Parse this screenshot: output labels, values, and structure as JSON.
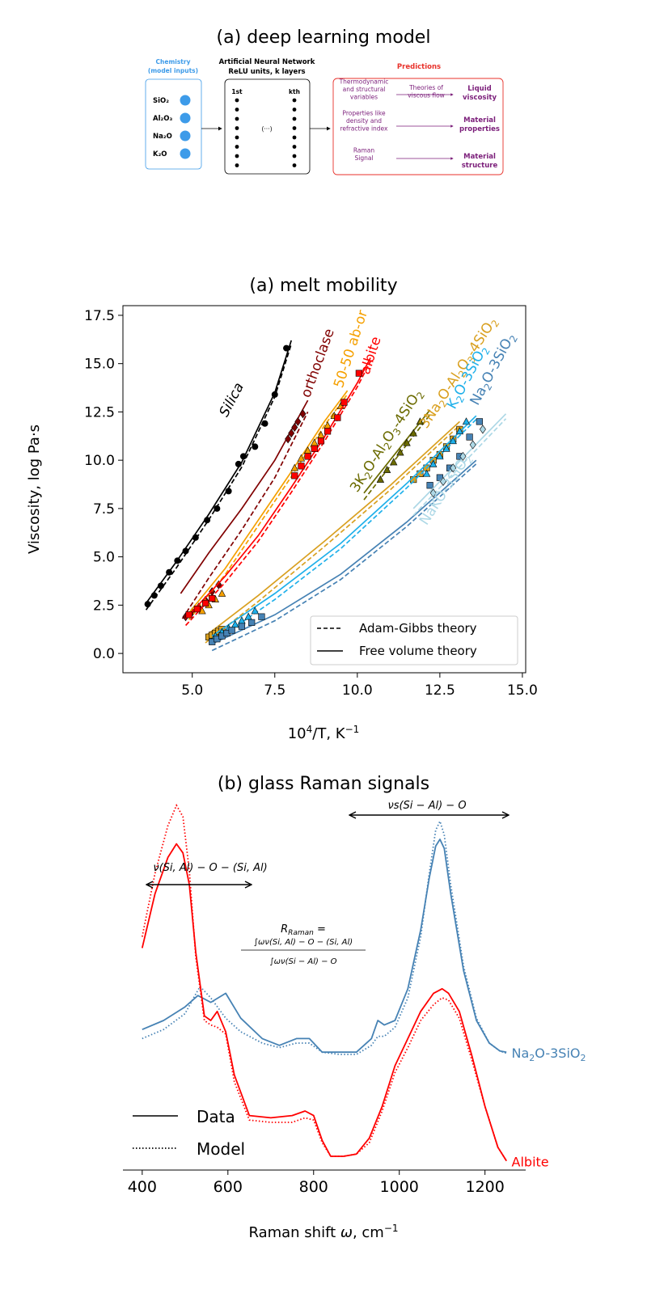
{
  "diagram": {
    "title": "(a) deep learning model",
    "inputs_title_1": "Chemistry",
    "inputs_title_2": "(model inputs)",
    "inputs": [
      "SiO₂",
      "Al₂O₃",
      "Na₂O",
      "K₂O"
    ],
    "ann_title_1": "Artificial Neural Network",
    "ann_title_2": "ReLU units, k layers",
    "ann_first": "1st",
    "ann_kth": "kth",
    "ann_dots": "(···)",
    "pred_title": "Predictions",
    "pred_rows": [
      {
        "left": [
          "Thermodynamic",
          "and structural",
          "variables"
        ],
        "middle": [
          "Theories of",
          "viscous flow"
        ],
        "right": [
          "Liquid",
          "viscosity"
        ]
      },
      {
        "left": [
          "Properties like",
          "density and",
          "refractive index"
        ],
        "middle": [],
        "right": [
          "Material",
          "properties"
        ]
      },
      {
        "left": [
          "Raman",
          "Signal"
        ],
        "middle": [],
        "right": [
          "Material",
          "structure"
        ]
      }
    ],
    "colors": {
      "inputs": "#3d9be9",
      "pred": "#e8322b",
      "purple": "#7b1e7a"
    }
  },
  "chart_data": [
    {
      "type": "line",
      "title": "(a) melt mobility",
      "xlabel_base": "10",
      "xlabel_sup": "4",
      "xlabel_rest": "/T, K",
      "xlabel_sup2": "−1",
      "ylabel": "Viscosity, log Pa·s",
      "xlim": [
        2.9,
        15.1
      ],
      "ylim": [
        -1.0,
        18.0
      ],
      "xticks": [
        "5.0",
        "7.5",
        "10.0",
        "12.5",
        "15.0"
      ],
      "yticks": [
        "0.0",
        "2.5",
        "5.0",
        "7.5",
        "10.0",
        "12.5",
        "15.0",
        "17.5"
      ],
      "legend": [
        {
          "label": "Adam-Gibbs theory",
          "style": "dashed"
        },
        {
          "label": "Free volume theory",
          "style": "solid"
        }
      ],
      "legend_position": "lower-right",
      "series": [
        {
          "name": "Silica",
          "color": "#000000",
          "marker": "circle",
          "x": [
            3.65,
            3.85,
            4.05,
            4.3,
            4.55,
            4.8,
            5.1,
            5.45,
            5.75,
            6.1,
            6.4,
            6.55,
            6.9,
            7.2,
            7.5,
            7.85
          ],
          "y": [
            2.55,
            3.0,
            3.5,
            4.2,
            4.8,
            5.3,
            6.0,
            6.9,
            7.5,
            8.4,
            9.8,
            10.2,
            10.7,
            11.9,
            13.4,
            15.8
          ],
          "fit_x": [
            3.6,
            4.5,
            5.5,
            6.5,
            7.5,
            8.0
          ],
          "fit_y": [
            2.6,
            4.7,
            7.2,
            9.9,
            13.5,
            16.2
          ],
          "label_text": "Silica",
          "label_x": 6.05,
          "label_y": 12.2,
          "label_rot": -62
        },
        {
          "name": "orthoclase",
          "color": "#800000",
          "marker": "diamond",
          "x": [
            4.8,
            5.0,
            5.2,
            5.4,
            5.6,
            5.8,
            7.9,
            8.0,
            8.1,
            8.2,
            8.35
          ],
          "y": [
            1.9,
            2.15,
            2.4,
            2.75,
            3.2,
            3.55,
            11.1,
            11.4,
            11.7,
            12.0,
            12.4
          ],
          "fit_x": [
            4.65,
            5.5,
            6.5,
            7.5,
            8.5
          ],
          "fit_y": [
            3.1,
            5.2,
            7.5,
            10.0,
            13.1
          ],
          "fit2_x": [
            4.7,
            5.5,
            6.5,
            7.5,
            8.5
          ],
          "fit2_y": [
            1.8,
            3.9,
            6.4,
            9.1,
            12.5
          ],
          "label_text": "orthoclase",
          "label_x": 8.55,
          "label_y": 13.2,
          "label_rot": -70
        },
        {
          "name": "50-50 ab-or",
          "color": "#f5a000",
          "marker": "triangle",
          "x": [
            5.3,
            5.5,
            5.7,
            5.9,
            8.1,
            8.3,
            8.5,
            8.7,
            8.9,
            9.1,
            9.3,
            9.5
          ],
          "y": [
            2.2,
            2.5,
            2.8,
            3.1,
            9.6,
            10.1,
            10.5,
            10.9,
            11.3,
            11.8,
            12.3,
            12.8
          ],
          "fit_x": [
            4.9,
            6.0,
            7.0,
            8.0,
            9.0,
            9.7
          ],
          "fit_y": [
            2.1,
            4.4,
            6.9,
            9.4,
            12.0,
            13.6
          ],
          "label_text": "50-50 ab-or",
          "label_x": 9.55,
          "label_y": 13.7,
          "label_rot": -72
        },
        {
          "name": "albite",
          "color": "#ff0000",
          "marker": "square",
          "x": [
            4.9,
            5.15,
            5.4,
            5.6,
            8.1,
            8.3,
            8.5,
            8.7,
            8.9,
            9.1,
            9.4,
            9.6,
            10.05
          ],
          "y": [
            2.0,
            2.3,
            2.6,
            2.85,
            9.2,
            9.7,
            10.2,
            10.6,
            11.0,
            11.5,
            12.2,
            13.0,
            14.5
          ],
          "fit_x": [
            4.8,
            6.0,
            7.0,
            8.0,
            9.0,
            10.0,
            10.4
          ],
          "fit_y": [
            1.8,
            4.0,
            6.1,
            8.6,
            11.2,
            14.0,
            15.3
          ],
          "label_text": "albite",
          "label_x": 10.35,
          "label_y": 14.4,
          "label_rot": -72
        },
        {
          "name": "3K₂O-Al₂O₃-4SiO₂",
          "color": "#6b6b00",
          "marker": "triangle",
          "x": [
            10.7,
            10.9,
            11.1,
            11.3,
            11.5,
            11.7,
            11.9
          ],
          "y": [
            9.0,
            9.5,
            9.9,
            10.4,
            10.9,
            11.4,
            12.0
          ],
          "fit_x": [
            10.2,
            12.2
          ],
          "fit_y": [
            8.3,
            12.6
          ],
          "label_text_base": "3K",
          "label_x": 10.0,
          "label_y": 8.3,
          "label_rot": -57
        },
        {
          "name": "3Na₂O-Al₂O₃-4SiO₂",
          "color": "#d9a020",
          "marker": "square",
          "x": [
            5.5,
            5.6,
            5.7,
            5.8,
            5.9,
            11.7,
            11.9,
            12.1,
            12.3,
            12.5,
            12.7,
            12.9,
            13.1
          ],
          "y": [
            0.85,
            0.95,
            1.05,
            1.15,
            1.25,
            9.0,
            9.3,
            9.6,
            10.0,
            10.3,
            10.7,
            11.1,
            11.6
          ],
          "fit_x": [
            5.4,
            7.0,
            9.0,
            11.0,
            13.1
          ],
          "fit_y": [
            0.9,
            3.0,
            5.8,
            8.7,
            12.0
          ],
          "label_text_base": "3Na",
          "label_x": 12.1,
          "label_y": 11.6,
          "label_rot": -57
        },
        {
          "name": "K₂O-3SiO₂",
          "color": "#1fb0ea",
          "marker": "triangle",
          "x": [
            5.7,
            5.9,
            6.1,
            6.3,
            6.5,
            6.7,
            6.9,
            12.1,
            12.3,
            12.5,
            12.7,
            12.9,
            13.1,
            13.3
          ],
          "y": [
            0.9,
            1.1,
            1.3,
            1.5,
            1.7,
            1.9,
            2.2,
            9.3,
            9.8,
            10.2,
            10.6,
            11.0,
            11.5,
            12.0
          ],
          "fit_x": [
            5.6,
            7.5,
            9.5,
            11.5,
            13.6
          ],
          "fit_y": [
            0.9,
            3.1,
            5.7,
            8.8,
            12.3
          ],
          "label_text_base": "K",
          "label_x": 12.95,
          "label_y": 12.6,
          "label_rot": -62
        },
        {
          "name": "Na₂O-3SiO₂",
          "color": "#4682b4",
          "marker": "square",
          "x": [
            5.6,
            5.75,
            5.9,
            6.05,
            6.2,
            6.5,
            6.8,
            7.1,
            12.2,
            12.5,
            12.8,
            13.1,
            13.4,
            13.7
          ],
          "y": [
            0.6,
            0.75,
            0.9,
            1.05,
            1.2,
            1.4,
            1.6,
            1.9,
            8.7,
            9.1,
            9.6,
            10.2,
            11.2,
            12.0
          ],
          "fit_x": [
            5.6,
            7.5,
            9.5,
            11.5,
            13.6
          ],
          "fit_y": [
            0.5,
            2.0,
            4.1,
            6.8,
            10.0
          ],
          "label_text_base": "Na",
          "label_x": 13.65,
          "label_y": 12.8,
          "label_rot": -62
        },
        {
          "name": "NaKO-3SiO₂",
          "color": "#add8e6",
          "marker": "diamond",
          "x": [
            12.3,
            12.6,
            12.9,
            13.2,
            13.5,
            13.8
          ],
          "y": [
            8.3,
            8.9,
            9.6,
            10.2,
            10.8,
            11.6
          ],
          "fit_x": [
            11.7,
            14.5
          ],
          "fit_y": [
            7.5,
            12.4
          ],
          "label_text": "NaKO-3SiO",
          "label_x": 12.1,
          "label_y": 6.6,
          "label_rot": -57
        }
      ]
    },
    {
      "type": "line",
      "title": "(b) glass Raman signals",
      "xlabel": "Raman shift",
      "xlabel_unit": ", cm",
      "xlabel_sup": "−1",
      "xlim": [
        355,
        1295
      ],
      "xticks": [
        "400",
        "600",
        "800",
        "1000",
        "1200"
      ],
      "legend": [
        {
          "label": "Data",
          "style": "solid"
        },
        {
          "label": "Model",
          "style": "dotted"
        }
      ],
      "legend_position": "lower-left",
      "ann_left": "ν(Si, Al) − O − (Si, Al)",
      "ann_right": "νs(Si − Al) − O",
      "formula_lhs": "R",
      "formula_sub": "Raman",
      "formula_eq": " =",
      "formula_num": "∫ων(Si, Al) − O − (Si, Al)",
      "formula_den": "∫ων(Si − Al) − O",
      "series": [
        {
          "name": "Na₂O-3SiO₂",
          "color": "#4682b4",
          "data_x": [
            400,
            450,
            500,
            530,
            560,
            595,
            630,
            680,
            720,
            760,
            790,
            820,
            860,
            900,
            935,
            950,
            965,
            990,
            1020,
            1050,
            1070,
            1085,
            1095,
            1105,
            1120,
            1150,
            1180,
            1210,
            1235,
            1250
          ],
          "data_y": [
            0.26,
            0.3,
            0.36,
            0.41,
            0.38,
            0.42,
            0.31,
            0.22,
            0.19,
            0.22,
            0.22,
            0.16,
            0.16,
            0.16,
            0.22,
            0.3,
            0.28,
            0.3,
            0.44,
            0.7,
            0.93,
            1.07,
            1.1,
            1.06,
            0.86,
            0.52,
            0.3,
            0.2,
            0.165,
            0.16
          ],
          "model_x": [
            400,
            450,
            500,
            520,
            535,
            560,
            595,
            630,
            680,
            720,
            760,
            790,
            820,
            860,
            900,
            935,
            950,
            965,
            990,
            1020,
            1050,
            1070,
            1085,
            1095,
            1105,
            1120,
            1150,
            1180,
            1210,
            1235,
            1250
          ],
          "model_y": [
            0.22,
            0.26,
            0.33,
            0.4,
            0.45,
            0.4,
            0.31,
            0.25,
            0.2,
            0.18,
            0.2,
            0.2,
            0.16,
            0.15,
            0.15,
            0.19,
            0.23,
            0.23,
            0.27,
            0.4,
            0.67,
            0.95,
            1.14,
            1.18,
            1.12,
            0.9,
            0.54,
            0.31,
            0.2,
            0.165,
            0.155
          ],
          "label_text_base": "Na",
          "label_x": 1262,
          "label_y": 0.16
        },
        {
          "name": "Albite",
          "color": "#ff0000",
          "data_x": [
            400,
            430,
            460,
            480,
            495,
            510,
            525,
            545,
            560,
            575,
            595,
            615,
            650,
            700,
            750,
            780,
            800,
            820,
            840,
            870,
            900,
            930,
            960,
            990,
            1020,
            1050,
            1080,
            1100,
            1115,
            1140,
            1170,
            1200,
            1230,
            1250
          ],
          "data_y": [
            0.62,
            0.86,
            1.02,
            1.08,
            1.04,
            0.9,
            0.6,
            0.32,
            0.3,
            0.34,
            0.25,
            0.06,
            -0.12,
            -0.13,
            -0.12,
            -0.1,
            -0.12,
            -0.23,
            -0.3,
            -0.3,
            -0.29,
            -0.22,
            -0.08,
            0.1,
            0.22,
            0.34,
            0.42,
            0.44,
            0.42,
            0.34,
            0.14,
            -0.08,
            -0.26,
            -0.32
          ],
          "model_x": [
            400,
            430,
            460,
            480,
            495,
            510,
            525,
            545,
            560,
            575,
            595,
            615,
            650,
            700,
            750,
            780,
            800,
            820,
            840,
            870,
            900,
            930,
            960,
            990,
            1020,
            1050,
            1080,
            1100,
            1115,
            1140,
            1170,
            1200,
            1230,
            1250
          ],
          "model_y": [
            0.67,
            0.95,
            1.16,
            1.25,
            1.2,
            0.96,
            0.58,
            0.3,
            0.28,
            0.27,
            0.24,
            0.03,
            -0.14,
            -0.15,
            -0.15,
            -0.13,
            -0.14,
            -0.24,
            -0.3,
            -0.3,
            -0.29,
            -0.24,
            -0.1,
            0.07,
            0.18,
            0.3,
            0.37,
            0.4,
            0.39,
            0.31,
            0.12,
            -0.08,
            -0.26,
            -0.32
          ],
          "label_text": "Albite",
          "label_x": 1262,
          "label_y": -0.32
        }
      ]
    }
  ]
}
